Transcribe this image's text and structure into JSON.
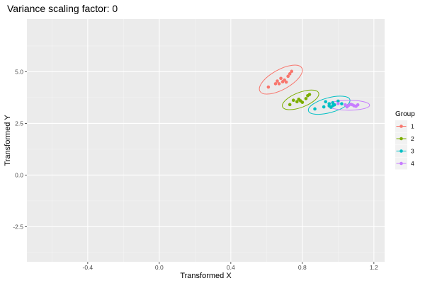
{
  "chart_data": {
    "type": "scatter",
    "title": "Variance scaling factor: 0",
    "xlabel": "Transformed X",
    "ylabel": "Transformed Y",
    "xlim": [
      -0.74,
      1.26
    ],
    "ylim": [
      -4.2,
      7.55
    ],
    "x_ticks": [
      -0.4,
      0.0,
      0.4,
      0.8,
      1.2
    ],
    "x_tick_labels": [
      "-0.4",
      "0.0",
      "0.4",
      "0.8",
      "1.2"
    ],
    "y_ticks": [
      -2.5,
      0.0,
      2.5,
      5.0
    ],
    "y_tick_labels": [
      "-2.5",
      "0.0",
      "2.5",
      "5.0"
    ],
    "grid": true,
    "legend": {
      "title": "Group",
      "position": "right"
    },
    "series": [
      {
        "name": "1",
        "color": "#F8766D",
        "points": [
          [
            0.61,
            4.26
          ],
          [
            0.65,
            4.42
          ],
          [
            0.66,
            4.55
          ],
          [
            0.67,
            4.42
          ],
          [
            0.68,
            4.68
          ],
          [
            0.69,
            4.52
          ],
          [
            0.7,
            4.6
          ],
          [
            0.71,
            4.5
          ],
          [
            0.72,
            4.78
          ],
          [
            0.73,
            4.9
          ],
          [
            0.74,
            5.02
          ]
        ],
        "ellipse": {
          "cx": 0.68,
          "cy": 4.62,
          "rx": 0.134,
          "ry": 0.048,
          "angle_deg": -29
        }
      },
      {
        "name": "2",
        "color": "#7CAE00",
        "points": [
          [
            0.73,
            3.41
          ],
          [
            0.75,
            3.62
          ],
          [
            0.77,
            3.55
          ],
          [
            0.78,
            3.67
          ],
          [
            0.79,
            3.59
          ],
          [
            0.8,
            3.52
          ],
          [
            0.82,
            3.7
          ],
          [
            0.83,
            3.84
          ],
          [
            0.84,
            3.9
          ]
        ],
        "ellipse": {
          "cx": 0.79,
          "cy": 3.64,
          "rx": 0.108,
          "ry": 0.036,
          "angle_deg": -21
        }
      },
      {
        "name": "3",
        "color": "#00BFC4",
        "points": [
          [
            0.87,
            3.2
          ],
          [
            0.92,
            3.3
          ],
          [
            0.93,
            3.55
          ],
          [
            0.95,
            3.45
          ],
          [
            0.95,
            3.35
          ],
          [
            0.96,
            3.28
          ],
          [
            0.97,
            3.5
          ],
          [
            0.97,
            3.36
          ],
          [
            0.98,
            3.4
          ],
          [
            1.0,
            3.58
          ],
          [
            1.02,
            3.45
          ]
        ],
        "ellipse": {
          "cx": 0.95,
          "cy": 3.38,
          "rx": 0.12,
          "ry": 0.036,
          "angle_deg": -15
        }
      },
      {
        "name": "4",
        "color": "#C77CFF",
        "points": [
          [
            1.0,
            3.46
          ],
          [
            1.04,
            3.4
          ],
          [
            1.05,
            3.33
          ],
          [
            1.05,
            3.3
          ],
          [
            1.06,
            3.38
          ],
          [
            1.07,
            3.43
          ],
          [
            1.08,
            3.4
          ],
          [
            1.09,
            3.35
          ],
          [
            1.1,
            3.33
          ],
          [
            1.11,
            3.4
          ]
        ],
        "ellipse": {
          "cx": 1.06,
          "cy": 3.38,
          "rx": 0.116,
          "ry": 0.024,
          "angle_deg": 0
        }
      }
    ]
  }
}
